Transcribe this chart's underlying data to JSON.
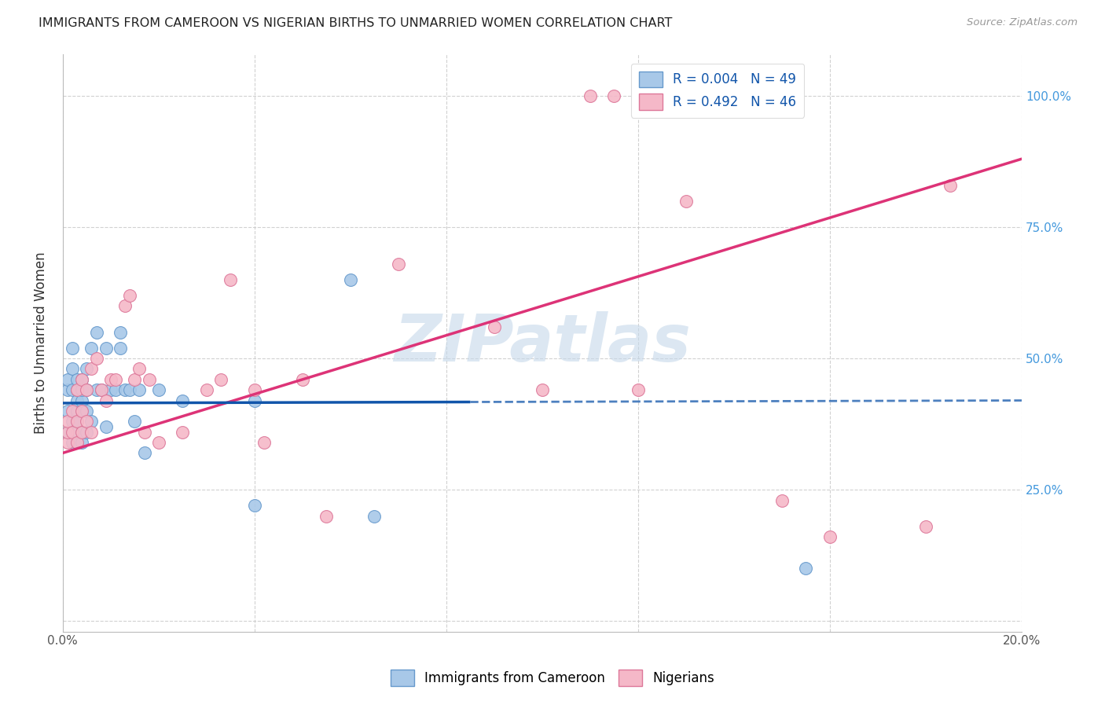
{
  "title": "IMMIGRANTS FROM CAMEROON VS NIGERIAN BIRTHS TO UNMARRIED WOMEN CORRELATION CHART",
  "source_text": "Source: ZipAtlas.com",
  "ylabel": "Births to Unmarried Women",
  "label1": "Immigrants from Cameroon",
  "label2": "Nigerians",
  "xlim": [
    0.0,
    0.2
  ],
  "ylim": [
    -0.02,
    1.08
  ],
  "x_tick_positions": [
    0.0,
    0.04,
    0.08,
    0.12,
    0.16,
    0.2
  ],
  "x_tick_labels": [
    "0.0%",
    "",
    "",
    "",
    "",
    "20.0%"
  ],
  "y_tick_positions": [
    0.0,
    0.25,
    0.5,
    0.75,
    1.0
  ],
  "y_tick_labels_right": [
    "",
    "25.0%",
    "50.0%",
    "75.0%",
    "100.0%"
  ],
  "series1_color": "#a8c8e8",
  "series1_edge": "#6699cc",
  "series2_color": "#f5b8c8",
  "series2_edge": "#dd7799",
  "trend1_color": "#1155aa",
  "trend2_color": "#dd3377",
  "trend1_solid_end": 0.085,
  "grid_color": "#cccccc",
  "watermark": "ZIPatlas",
  "watermark_color": "#c5d8ea",
  "legend_r1": "R = 0.004",
  "legend_n1": "N = 49",
  "legend_r2": "R = 0.492",
  "legend_n2": "N = 46",
  "series1_x": [
    0.001,
    0.001,
    0.001,
    0.001,
    0.002,
    0.002,
    0.002,
    0.002,
    0.002,
    0.003,
    0.003,
    0.003,
    0.003,
    0.003,
    0.003,
    0.003,
    0.004,
    0.004,
    0.004,
    0.004,
    0.004,
    0.004,
    0.005,
    0.005,
    0.005,
    0.005,
    0.006,
    0.006,
    0.007,
    0.007,
    0.008,
    0.009,
    0.009,
    0.01,
    0.011,
    0.012,
    0.012,
    0.013,
    0.014,
    0.015,
    0.016,
    0.017,
    0.02,
    0.025,
    0.04,
    0.04,
    0.06,
    0.065,
    0.155
  ],
  "series1_y": [
    0.36,
    0.4,
    0.44,
    0.46,
    0.34,
    0.38,
    0.44,
    0.48,
    0.52,
    0.34,
    0.36,
    0.38,
    0.4,
    0.42,
    0.44,
    0.46,
    0.34,
    0.36,
    0.4,
    0.42,
    0.44,
    0.46,
    0.36,
    0.4,
    0.44,
    0.48,
    0.38,
    0.52,
    0.44,
    0.55,
    0.44,
    0.37,
    0.52,
    0.44,
    0.44,
    0.52,
    0.55,
    0.44,
    0.44,
    0.38,
    0.44,
    0.32,
    0.44,
    0.42,
    0.42,
    0.22,
    0.65,
    0.2,
    0.1
  ],
  "series2_x": [
    0.001,
    0.001,
    0.001,
    0.002,
    0.002,
    0.003,
    0.003,
    0.003,
    0.004,
    0.004,
    0.004,
    0.005,
    0.005,
    0.006,
    0.006,
    0.007,
    0.008,
    0.009,
    0.01,
    0.011,
    0.013,
    0.014,
    0.015,
    0.016,
    0.017,
    0.018,
    0.02,
    0.025,
    0.03,
    0.033,
    0.035,
    0.04,
    0.042,
    0.05,
    0.055,
    0.07,
    0.09,
    0.1,
    0.11,
    0.115,
    0.12,
    0.13,
    0.15,
    0.16,
    0.18,
    0.185
  ],
  "series2_y": [
    0.34,
    0.36,
    0.38,
    0.36,
    0.4,
    0.34,
    0.38,
    0.44,
    0.36,
    0.4,
    0.46,
    0.38,
    0.44,
    0.36,
    0.48,
    0.5,
    0.44,
    0.42,
    0.46,
    0.46,
    0.6,
    0.62,
    0.46,
    0.48,
    0.36,
    0.46,
    0.34,
    0.36,
    0.44,
    0.46,
    0.65,
    0.44,
    0.34,
    0.46,
    0.2,
    0.68,
    0.56,
    0.44,
    1.0,
    1.0,
    0.44,
    0.8,
    0.23,
    0.16,
    0.18,
    0.83
  ],
  "trend1_intercept": 0.415,
  "trend1_slope": 0.025,
  "trend2_intercept": 0.32,
  "trend2_slope": 2.8
}
